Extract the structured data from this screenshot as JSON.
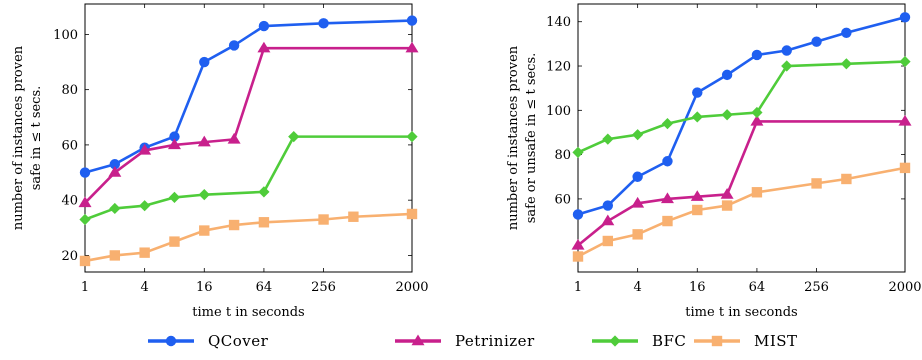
{
  "chart_data": [
    {
      "type": "line",
      "xscale": "log2",
      "x": [
        1,
        2,
        4,
        8,
        16,
        32,
        64,
        256,
        2000
      ],
      "xticks": [
        "1",
        "4",
        "16",
        "64",
        "256",
        "2000"
      ],
      "xtick_values": [
        1,
        4,
        16,
        64,
        256,
        2000
      ],
      "xlim": [
        1,
        2000
      ],
      "xlabel": "time t in seconds",
      "ylabel_line1": "number of instances proven",
      "ylabel_line2": "safe in ≤ t secs.",
      "yticks": [
        "20",
        "40",
        "60",
        "80",
        "100"
      ],
      "ytick_values": [
        20,
        40,
        60,
        80,
        100
      ],
      "ylim": [
        14,
        111
      ],
      "grid": false,
      "series": [
        {
          "name": "QCover",
          "color": "#1f5ff0",
          "marker": "circle",
          "points": [
            [
              1,
              50
            ],
            [
              2,
              53
            ],
            [
              4,
              59
            ],
            [
              8,
              63
            ],
            [
              16,
              90
            ],
            [
              32,
              96
            ],
            [
              64,
              103
            ],
            [
              256,
              104
            ],
            [
              2000,
              105
            ]
          ]
        },
        {
          "name": "Petrinizer",
          "color": "#c8208c",
          "marker": "triangle",
          "points": [
            [
              1,
              39
            ],
            [
              2,
              50
            ],
            [
              4,
              58
            ],
            [
              8,
              60
            ],
            [
              16,
              61
            ],
            [
              32,
              62
            ],
            [
              64,
              95
            ],
            [
              2000,
              95
            ]
          ]
        },
        {
          "name": "BFC",
          "color": "#4fcc3a",
          "marker": "diamond",
          "points": [
            [
              1,
              33
            ],
            [
              2,
              37
            ],
            [
              4,
              38
            ],
            [
              8,
              41
            ],
            [
              16,
              42
            ],
            [
              64,
              43
            ],
            [
              128,
              63
            ],
            [
              2000,
              63
            ]
          ]
        },
        {
          "name": "MIST",
          "color": "#f8b070",
          "marker": "square",
          "points": [
            [
              1,
              18
            ],
            [
              2,
              20
            ],
            [
              4,
              21
            ],
            [
              8,
              25
            ],
            [
              16,
              29
            ],
            [
              32,
              31
            ],
            [
              64,
              32
            ],
            [
              256,
              33
            ],
            [
              512,
              34
            ],
            [
              2000,
              35
            ]
          ]
        }
      ]
    },
    {
      "type": "line",
      "xscale": "log2",
      "x": [
        1,
        2,
        4,
        8,
        16,
        32,
        64,
        256,
        2000
      ],
      "xticks": [
        "1",
        "4",
        "16",
        "64",
        "256",
        "2000"
      ],
      "xtick_values": [
        1,
        4,
        16,
        64,
        256,
        2000
      ],
      "xlim": [
        1,
        2000
      ],
      "xlabel": "time t in seconds",
      "ylabel_line1": "number of instances proven",
      "ylabel_line2": "safe or unsafe in ≤ t secs.",
      "yticks": [
        "60",
        "80",
        "100",
        "120",
        "140"
      ],
      "ytick_values": [
        60,
        80,
        100,
        120,
        140
      ],
      "ylim": [
        27,
        148
      ],
      "grid": false,
      "series": [
        {
          "name": "QCover",
          "color": "#1f5ff0",
          "marker": "circle",
          "points": [
            [
              1,
              53
            ],
            [
              2,
              57
            ],
            [
              4,
              70
            ],
            [
              8,
              77
            ],
            [
              16,
              108
            ],
            [
              32,
              116
            ],
            [
              64,
              125
            ],
            [
              128,
              127
            ],
            [
              256,
              131
            ],
            [
              512,
              135
            ],
            [
              2000,
              142
            ]
          ]
        },
        {
          "name": "Petrinizer",
          "color": "#c8208c",
          "marker": "triangle",
          "points": [
            [
              1,
              39
            ],
            [
              2,
              50
            ],
            [
              4,
              58
            ],
            [
              8,
              60
            ],
            [
              16,
              61
            ],
            [
              32,
              62
            ],
            [
              64,
              95
            ],
            [
              2000,
              95
            ]
          ]
        },
        {
          "name": "BFC",
          "color": "#4fcc3a",
          "marker": "diamond",
          "points": [
            [
              1,
              81
            ],
            [
              2,
              87
            ],
            [
              4,
              89
            ],
            [
              8,
              94
            ],
            [
              16,
              97
            ],
            [
              32,
              98
            ],
            [
              64,
              99
            ],
            [
              128,
              120
            ],
            [
              512,
              121
            ],
            [
              2000,
              122
            ]
          ]
        },
        {
          "name": "MIST",
          "color": "#f8b070",
          "marker": "square",
          "points": [
            [
              1,
              34
            ],
            [
              2,
              41
            ],
            [
              4,
              44
            ],
            [
              8,
              50
            ],
            [
              16,
              55
            ],
            [
              32,
              57
            ],
            [
              64,
              63
            ],
            [
              256,
              67
            ],
            [
              512,
              69
            ],
            [
              2000,
              74
            ]
          ]
        }
      ]
    }
  ],
  "legend": {
    "placement": "bottom-center",
    "entries": [
      {
        "label": "QCover",
        "color": "#1f5ff0",
        "marker": "circle"
      },
      {
        "label": "Petrinizer",
        "color": "#c8208c",
        "marker": "triangle"
      },
      {
        "label": "BFC",
        "color": "#4fcc3a",
        "marker": "diamond"
      },
      {
        "label": "MIST",
        "color": "#f8b070",
        "marker": "square"
      }
    ]
  }
}
